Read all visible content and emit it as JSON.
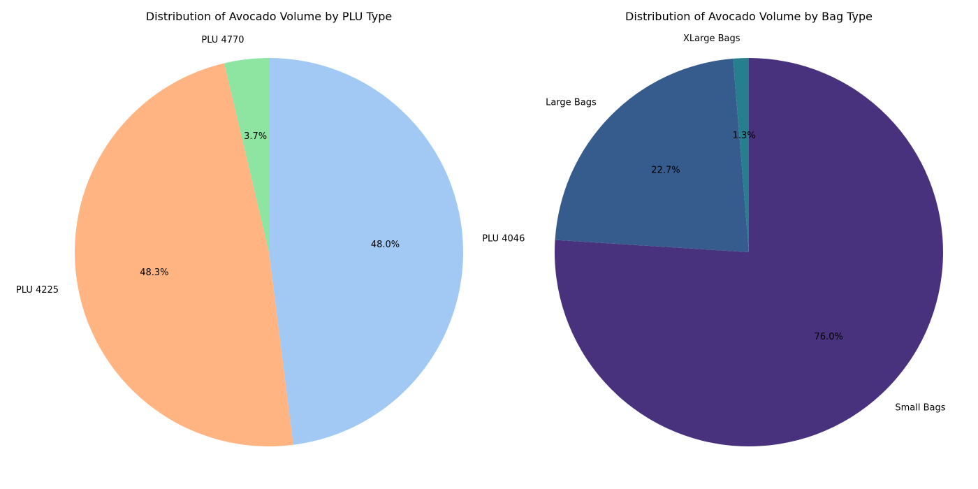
{
  "chart_data": [
    {
      "type": "pie",
      "title": "Distribution of Avocado Volume by PLU Type",
      "start_angle_deg": 90,
      "direction": "clockwise",
      "label_format": "percent_1dp",
      "slices": [
        {
          "label": "PLU 4046",
          "value": 48.0,
          "color": "#a1c9f4"
        },
        {
          "label": "PLU 4225",
          "value": 48.3,
          "color": "#ffb482"
        },
        {
          "label": "PLU 4770",
          "value": 3.7,
          "color": "#8de5a1"
        }
      ]
    },
    {
      "type": "pie",
      "title": "Distribution of Avocado Volume by Bag Type",
      "start_angle_deg": 90,
      "direction": "clockwise",
      "label_format": "percent_1dp",
      "slices": [
        {
          "label": "Small Bags",
          "value": 76.0,
          "color": "#48327e"
        },
        {
          "label": "Large Bags",
          "value": 22.7,
          "color": "#365c8d"
        },
        {
          "label": "XLarge Bags",
          "value": 1.3,
          "color": "#277f8e"
        }
      ]
    }
  ]
}
